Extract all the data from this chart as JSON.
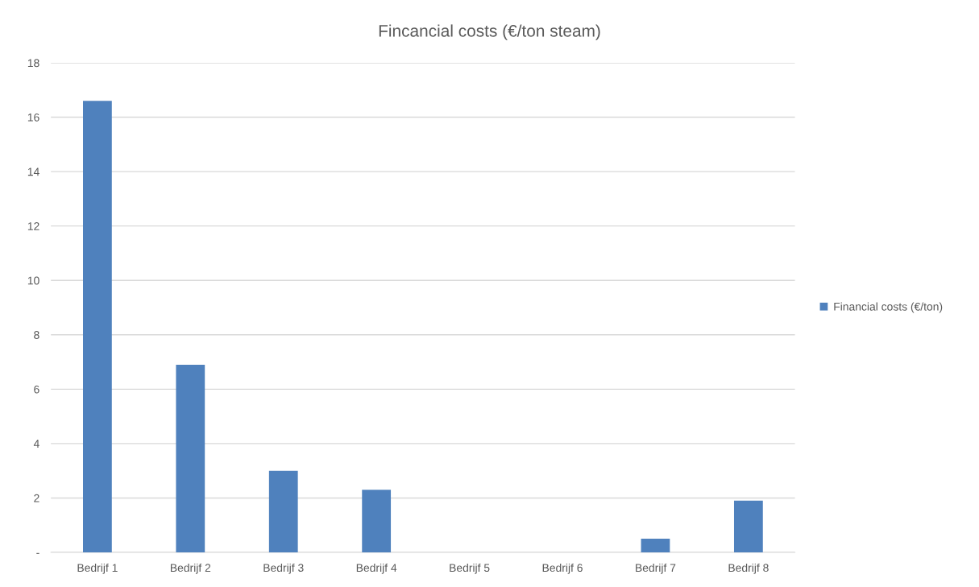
{
  "chart_data": {
    "type": "bar",
    "title": "Fincancial costs (€/ton steam)",
    "categories": [
      "Bedrijf 1",
      "Bedrijf 2",
      "Bedrijf 3",
      "Bedrijf 4",
      "Bedrijf 5",
      "Bedrijf 6",
      "Bedrijf 7",
      "Bedrijf 8"
    ],
    "series": [
      {
        "name": "Financial costs (€/ton)",
        "color": "#4f81bd",
        "values": [
          16.6,
          6.9,
          3.0,
          2.3,
          0,
          0,
          0.5,
          1.9
        ]
      }
    ],
    "ylim": [
      0,
      18
    ],
    "yticks": [
      {
        "value": 0,
        "label": "-"
      },
      2,
      4,
      6,
      8,
      10,
      12,
      14,
      16,
      18
    ],
    "grid": "y",
    "legend": "right"
  }
}
